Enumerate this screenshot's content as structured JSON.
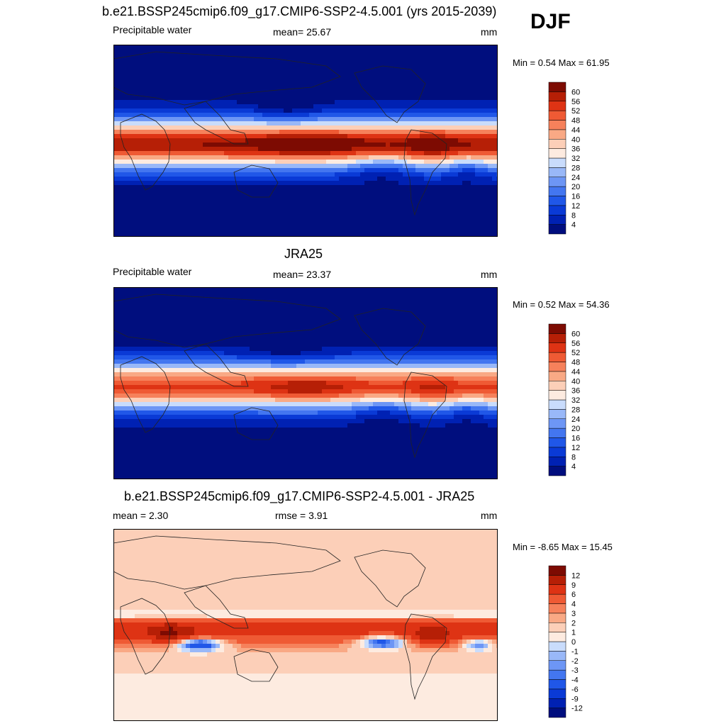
{
  "season": "DJF",
  "palettes": {
    "full": [
      "#000e7e",
      "#0021b3",
      "#0a3ad6",
      "#2057e8",
      "#4376f0",
      "#6d96f5",
      "#99b8f8",
      "#c9dcfc",
      "#fdebe0",
      "#fccfb8",
      "#f9a985",
      "#f6815b",
      "#ef5a34",
      "#de3314",
      "#b61f06",
      "#7d0b02"
    ],
    "diff": [
      "#000e7e",
      "#0021b3",
      "#0a3ad6",
      "#2057e8",
      "#4376f0",
      "#6d96f5",
      "#99b8f8",
      "#c9dcfc",
      "#fdebe0",
      "#fccfb8",
      "#f9a985",
      "#f6815b",
      "#ef5a34",
      "#de3314",
      "#b61f06",
      "#7d0b02"
    ]
  },
  "panels": [
    {
      "id": "model",
      "title": "b.e21.BSSP245cmip6.f09_g17.CMIP6-SSP2-4.5.001 (yrs 2015-2039)",
      "left_label": "Precipitable water",
      "center_label": "mean=  25.67",
      "units": "mm",
      "minmax": "Min =   0.54 Max =  61.95",
      "colorbar_ticks": [
        "4",
        "8",
        "12",
        "16",
        "20",
        "24",
        "28",
        "32",
        "36",
        "40",
        "44",
        "48",
        "52",
        "56",
        "60"
      ],
      "palette": "full",
      "field": "model"
    },
    {
      "id": "obs",
      "title": "JRA25",
      "left_label": "Precipitable water",
      "center_label": "mean=  23.37",
      "units": "mm",
      "minmax": "Min =   0.52 Max =  54.36",
      "colorbar_ticks": [
        "4",
        "8",
        "12",
        "16",
        "20",
        "24",
        "28",
        "32",
        "36",
        "40",
        "44",
        "48",
        "52",
        "56",
        "60"
      ],
      "palette": "full",
      "field": "obs"
    },
    {
      "id": "diff",
      "title": "b.e21.BSSP245cmip6.f09_g17.CMIP6-SSP2-4.5.001 - JRA25",
      "left_label": "mean =   2.30",
      "center_label": "rmse =   3.91",
      "units": "mm",
      "minmax": "Min =  -8.65 Max =  15.45",
      "colorbar_ticks": [
        "-12",
        "-9",
        "-6",
        "-4",
        "-3",
        "-2",
        "-1",
        "0",
        "1",
        "2",
        "3",
        "4",
        "6",
        "9",
        "12"
      ],
      "palette": "diff",
      "field": "diff"
    }
  ]
}
